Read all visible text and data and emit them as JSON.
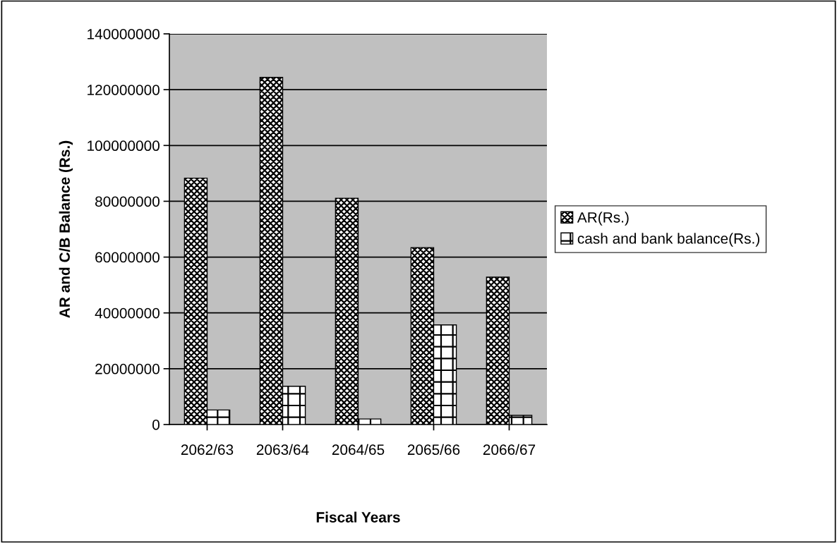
{
  "chart_data": {
    "type": "bar",
    "categories": [
      "2062/63",
      "2063/64",
      "2064/65",
      "2065/66",
      "2066/67"
    ],
    "series": [
      {
        "name": "AR(Rs.)",
        "color": "#000000",
        "values": [
          88300000,
          124400000,
          81100000,
          63400000,
          52800000
        ]
      },
      {
        "name": "cash and bank balance(Rs.)",
        "color": "#000000",
        "values": [
          5200000,
          13700000,
          2000000,
          35700000,
          3300000
        ]
      }
    ],
    "xlabel": "Fiscal Years",
    "ylabel": "AR and C/B Balance (Rs.)",
    "ylim": [
      0,
      140000000
    ],
    "yticks": [
      0,
      20000000,
      40000000,
      60000000,
      80000000,
      100000000,
      120000000,
      140000000
    ],
    "grid": "y",
    "legend": "right"
  }
}
